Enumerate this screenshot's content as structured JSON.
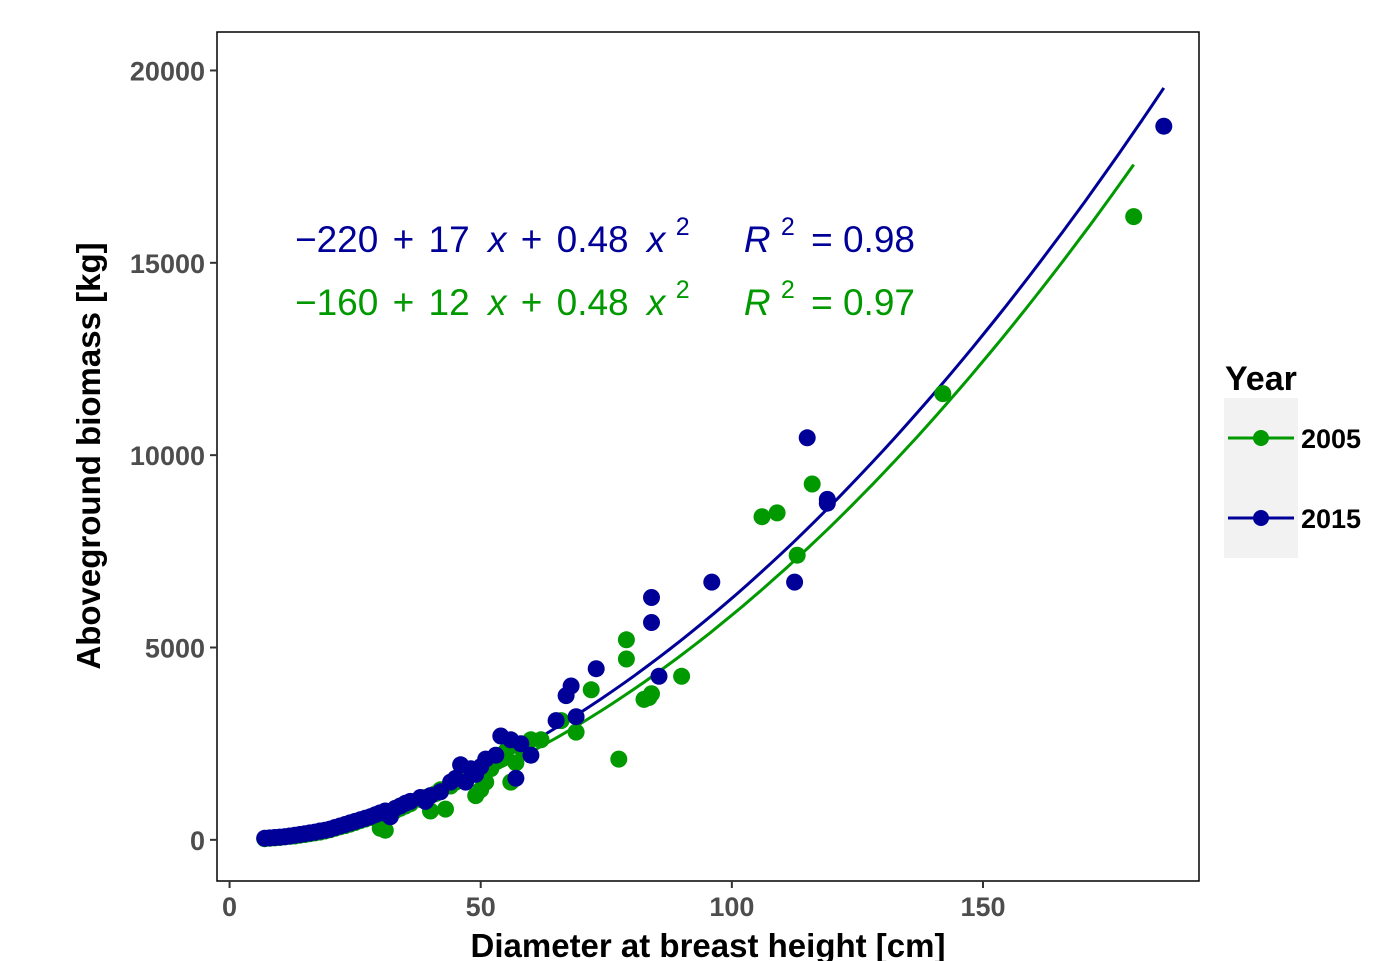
{
  "chart_data": {
    "type": "scatter",
    "xlabel": "Diameter at breast height [cm]",
    "ylabel": "Aboveground biomass [kg]",
    "xlim": [
      -2.5,
      193
    ],
    "ylim": [
      -1070,
      21000
    ],
    "x_ticks": [
      0,
      50,
      100,
      150
    ],
    "y_ticks": [
      0,
      5000,
      10000,
      15000,
      20000
    ],
    "x_tick_labels": [
      "0",
      "50",
      "100",
      "150"
    ],
    "y_tick_labels": [
      "0",
      "5000",
      "10000",
      "15000",
      "20000"
    ],
    "grid": false,
    "legend": {
      "title": "Year",
      "position": "right",
      "entries": [
        "2005",
        "2015"
      ]
    },
    "series": [
      {
        "name": "2005",
        "color": "#009900",
        "points": [
          [
            7,
            30
          ],
          [
            8,
            40
          ],
          [
            9,
            50
          ],
          [
            10,
            60
          ],
          [
            11,
            80
          ],
          [
            12,
            90
          ],
          [
            13,
            100
          ],
          [
            14,
            120
          ],
          [
            15,
            140
          ],
          [
            16,
            160
          ],
          [
            17,
            180
          ],
          [
            18,
            200
          ],
          [
            19,
            230
          ],
          [
            20,
            260
          ],
          [
            21,
            300
          ],
          [
            22,
            340
          ],
          [
            23,
            370
          ],
          [
            24,
            410
          ],
          [
            25,
            450
          ],
          [
            26,
            500
          ],
          [
            27,
            540
          ],
          [
            28,
            580
          ],
          [
            29,
            620
          ],
          [
            30,
            300
          ],
          [
            31,
            250
          ],
          [
            32,
            700
          ],
          [
            33,
            760
          ],
          [
            34,
            820
          ],
          [
            35,
            880
          ],
          [
            36,
            940
          ],
          [
            38,
            1050
          ],
          [
            39,
            1100
          ],
          [
            40,
            750
          ],
          [
            41,
            1200
          ],
          [
            42,
            1300
          ],
          [
            43,
            800
          ],
          [
            44,
            1400
          ],
          [
            45,
            1500
          ],
          [
            46,
            1600
          ],
          [
            47,
            1700
          ],
          [
            49,
            1150
          ],
          [
            50,
            1300
          ],
          [
            51,
            1500
          ],
          [
            52,
            1850
          ],
          [
            54,
            2100
          ],
          [
            55,
            2300
          ],
          [
            56,
            1500
          ],
          [
            57,
            2000
          ],
          [
            58,
            2400
          ],
          [
            60,
            2600
          ],
          [
            62,
            2600
          ],
          [
            66,
            3100
          ],
          [
            69,
            2800
          ],
          [
            72,
            3900
          ],
          [
            77.5,
            2100
          ],
          [
            79,
            4700
          ],
          [
            79,
            5200
          ],
          [
            82.5,
            3650
          ],
          [
            83.5,
            3700
          ],
          [
            84,
            3800
          ],
          [
            90,
            4250
          ],
          [
            106,
            8400
          ],
          [
            109,
            8500
          ],
          [
            113,
            7400
          ],
          [
            116,
            9250
          ],
          [
            142,
            11600
          ],
          [
            180,
            16200
          ]
        ],
        "fit": {
          "intercept": -160,
          "linear": 12,
          "quadratic": 0.48,
          "x_range": [
            7,
            180
          ]
        },
        "equation": {
          "intercept": "−160",
          "op1": "+",
          "coef1": "12",
          "op2": "+",
          "coef2": "0.48",
          "exp": "2",
          "r2_symbol": "R",
          "r2_exp": "2",
          "r2_value": "= 0.97"
        }
      },
      {
        "name": "2015",
        "color": "#000099",
        "points": [
          [
            7,
            40
          ],
          [
            8,
            50
          ],
          [
            9,
            60
          ],
          [
            10,
            70
          ],
          [
            11,
            80
          ],
          [
            12,
            100
          ],
          [
            13,
            120
          ],
          [
            14,
            140
          ],
          [
            15,
            160
          ],
          [
            16,
            180
          ],
          [
            17,
            200
          ],
          [
            18,
            230
          ],
          [
            19,
            250
          ],
          [
            20,
            280
          ],
          [
            21,
            320
          ],
          [
            22,
            360
          ],
          [
            23,
            400
          ],
          [
            24,
            440
          ],
          [
            25,
            480
          ],
          [
            26,
            520
          ],
          [
            27,
            560
          ],
          [
            28,
            600
          ],
          [
            29,
            650
          ],
          [
            30,
            700
          ],
          [
            31,
            750
          ],
          [
            32,
            600
          ],
          [
            33,
            820
          ],
          [
            34,
            880
          ],
          [
            35,
            950
          ],
          [
            36,
            1000
          ],
          [
            38,
            1100
          ],
          [
            39,
            1000
          ],
          [
            40,
            1150
          ],
          [
            42,
            1250
          ],
          [
            44,
            1500
          ],
          [
            45,
            1600
          ],
          [
            46,
            1950
          ],
          [
            47,
            1500
          ],
          [
            48,
            1850
          ],
          [
            49,
            1700
          ],
          [
            50,
            1900
          ],
          [
            51,
            2100
          ],
          [
            53,
            2200
          ],
          [
            54,
            2700
          ],
          [
            56,
            2600
          ],
          [
            57,
            1600
          ],
          [
            58,
            2500
          ],
          [
            60,
            2200
          ],
          [
            65,
            3100
          ],
          [
            67,
            3750
          ],
          [
            68,
            4000
          ],
          [
            69,
            3200
          ],
          [
            73,
            4450
          ],
          [
            84,
            6300
          ],
          [
            84,
            5650
          ],
          [
            85.5,
            4250
          ],
          [
            96,
            6700
          ],
          [
            112.5,
            6700
          ],
          [
            115,
            10450
          ],
          [
            119,
            8850
          ],
          [
            119,
            8750
          ],
          [
            186,
            18550
          ]
        ],
        "fit": {
          "intercept": -220,
          "linear": 17,
          "quadratic": 0.48,
          "x_range": [
            7,
            186
          ]
        },
        "equation": {
          "intercept": "−220",
          "op1": "+",
          "coef1": "17",
          "op2": "+",
          "coef2": "0.48",
          "exp": "2",
          "r2_symbol": "R",
          "r2_exp": "2",
          "r2_value": "= 0.98"
        }
      }
    ]
  }
}
